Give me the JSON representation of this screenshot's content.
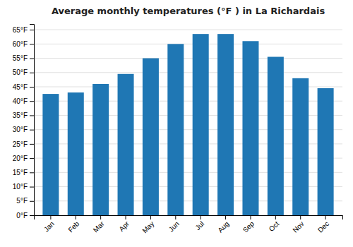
{
  "chart_data": {
    "type": "bar",
    "title": "Average monthly temperatures (°F ) in La Richardais",
    "categories": [
      "Jan",
      "Feb",
      "Mar",
      "Apr",
      "May",
      "Jun",
      "Jul",
      "Aug",
      "Sep",
      "Oct",
      "Nov",
      "Dec"
    ],
    "values": [
      42.5,
      43.0,
      46.0,
      49.5,
      55.0,
      60.0,
      63.5,
      63.5,
      61.0,
      55.5,
      48.0,
      44.5
    ],
    "ylim": [
      0,
      67
    ],
    "yticks": [
      {
        "value": 0,
        "label": "0°F"
      },
      {
        "value": 5,
        "label": "5°F"
      },
      {
        "value": 10,
        "label": "10°F"
      },
      {
        "value": 15,
        "label": "15°F"
      },
      {
        "value": 20,
        "label": "20°F"
      },
      {
        "value": 25,
        "label": "25°F"
      },
      {
        "value": 30,
        "label": "30°F"
      },
      {
        "value": 35,
        "label": "35°F"
      },
      {
        "value": 40,
        "label": "40°F"
      },
      {
        "value": 45,
        "label": "45°F"
      },
      {
        "value": 50,
        "label": "50°F"
      },
      {
        "value": 55,
        "label": "55°F"
      },
      {
        "value": 60,
        "label": "60°F"
      },
      {
        "value": 65,
        "label": "65°F"
      }
    ],
    "grid": true
  }
}
